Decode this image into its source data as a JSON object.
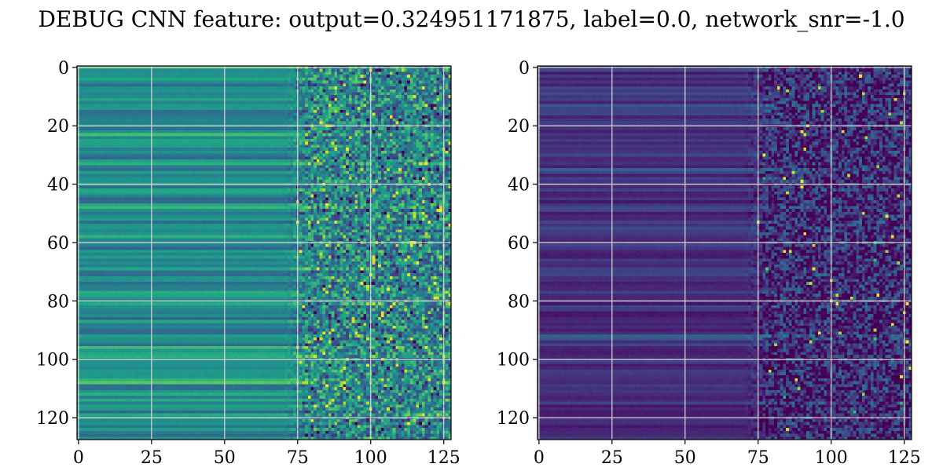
{
  "figure": {
    "title": "DEBUG CNN feature: output=0.324951171875, label=0.0, network_snr=-1.0"
  },
  "chart_data": [
    {
      "type": "heatmap",
      "title": "",
      "xlabel": "",
      "ylabel": "",
      "rows": 128,
      "cols": 128,
      "xlim": [
        0,
        127
      ],
      "ylim": [
        127,
        0
      ],
      "xticks": [
        0,
        25,
        50,
        75,
        100,
        125
      ],
      "yticks": [
        0,
        20,
        40,
        60,
        80,
        100,
        120
      ],
      "grid": true,
      "colormap": "viridis",
      "description_levels": "left columns ~0-70 smooth horizontal bands (mid-teal/green), right columns ~75-127 noisy with bright yellow speckles"
    },
    {
      "type": "heatmap",
      "title": "",
      "xlabel": "",
      "ylabel": "",
      "rows": 128,
      "cols": 128,
      "xlim": [
        0,
        127
      ],
      "ylim": [
        127,
        0
      ],
      "xticks": [
        0,
        25,
        50,
        75,
        100,
        125
      ],
      "yticks": [
        0,
        20,
        40,
        60,
        80,
        100,
        120
      ],
      "grid": true,
      "colormap": "viridis",
      "description_levels": "mostly dark purple; left columns ~0-70 smooth dark bands, right columns ~75-127 noisy teal/green speckles with few yellow pixels"
    }
  ]
}
